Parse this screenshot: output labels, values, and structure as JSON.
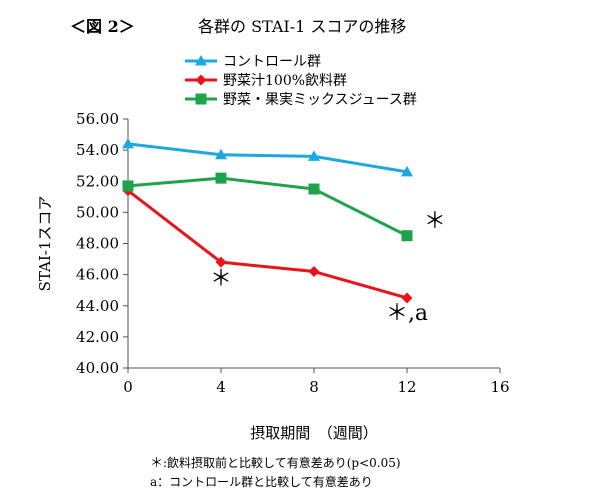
{
  "figure": {
    "label": "＜図 2＞",
    "title": "各群の STAI-1 スコアの推移"
  },
  "chart_data": {
    "type": "line",
    "xlabel": "摂取期間　（週間）",
    "ylabel": "STAI-1スコア",
    "xlim": [
      0,
      16
    ],
    "ylim": [
      40,
      56
    ],
    "x_ticks": [
      0,
      4,
      8,
      12,
      16
    ],
    "y_ticks": [
      40,
      42,
      44,
      46,
      48,
      50,
      52,
      54,
      56
    ],
    "y_tick_labels": [
      "40.00",
      "42.00",
      "44.00",
      "46.00",
      "48.00",
      "50.00",
      "52.00",
      "54.00",
      "56.00"
    ],
    "grid": false,
    "legend_position": "top",
    "series": [
      {
        "name": "コントロール群",
        "color": "#1ea8e0",
        "marker": "triangle",
        "x": [
          0,
          4,
          8,
          12
        ],
        "y": [
          54.4,
          53.7,
          53.6,
          52.6
        ]
      },
      {
        "name": "野菜汁100%飲料群",
        "color": "#e8141c",
        "marker": "diamond",
        "x": [
          0,
          4,
          8,
          12
        ],
        "y": [
          51.4,
          46.8,
          46.2,
          44.5
        ]
      },
      {
        "name": "野菜・果実ミックスジュース群",
        "color": "#1fa34a",
        "marker": "square",
        "x": [
          0,
          4,
          8,
          12
        ],
        "y": [
          51.7,
          52.2,
          51.5,
          48.5
        ]
      }
    ],
    "annotations": [
      {
        "text": "＊",
        "x": 4,
        "y": 45.3
      },
      {
        "text": "＊,a",
        "x": 12,
        "y": 43.1
      },
      {
        "text": "＊",
        "x": 13.2,
        "y": 49.0
      }
    ]
  },
  "notes": [
    {
      "mark": "＊",
      "text": ":飲料摂取前と比較して有意差あり(p<0.05)"
    },
    {
      "mark": "a",
      "text": "：コントロール群と比較して有意差あり"
    }
  ]
}
